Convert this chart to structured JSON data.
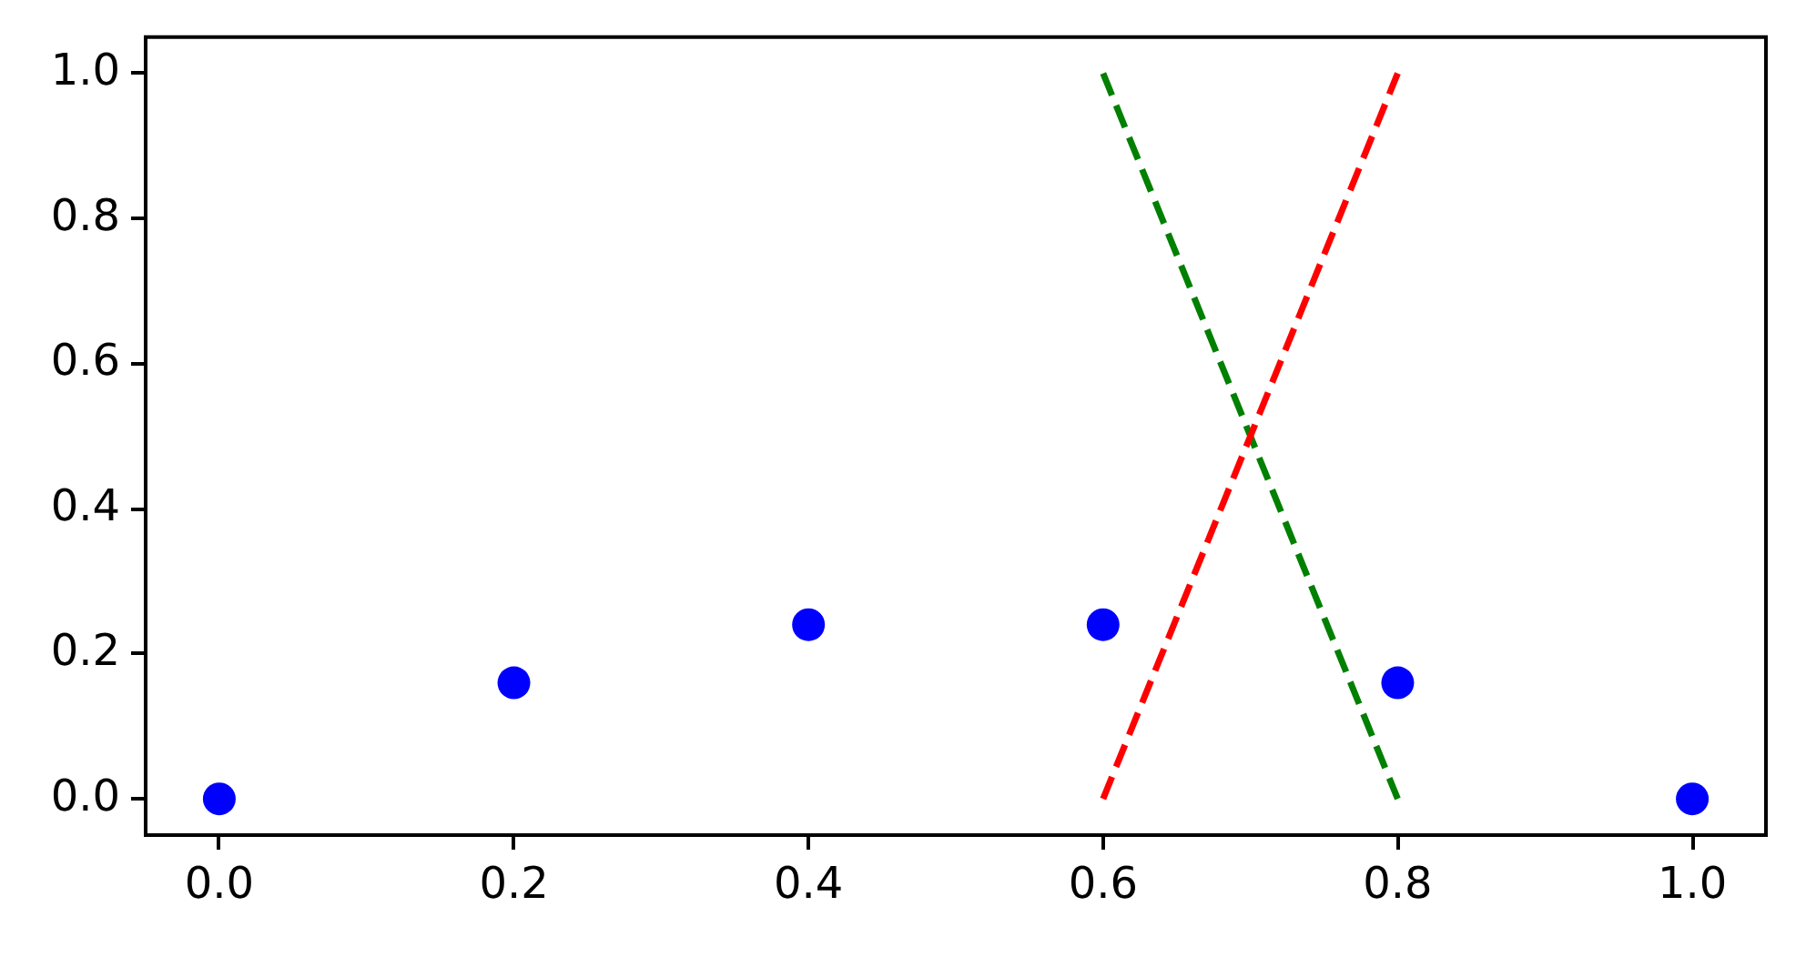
{
  "chart_data": {
    "type": "scatter",
    "xlim": [
      -0.05,
      1.05
    ],
    "ylim": [
      -0.05,
      1.05
    ],
    "xticks": [
      {
        "value": 0,
        "label": "0.0"
      },
      0.2,
      0.4,
      0.6,
      0.8,
      {
        "value": 1,
        "label": "1.0"
      }
    ],
    "yticks": [
      {
        "value": 0,
        "label": "0.0"
      },
      0.2,
      0.4,
      0.6,
      0.8,
      {
        "value": 1,
        "label": "1.0"
      }
    ],
    "series": [
      {
        "color": "#0000ff",
        "marker": "circle",
        "x": [
          0,
          0.2,
          0.4,
          0.6,
          0.8,
          1
        ],
        "values": [
          0,
          0.16,
          0.24,
          0.24,
          0.16,
          0
        ]
      },
      {
        "type": "line",
        "color": "#ff0000",
        "line_style": "dashed",
        "x": [
          0.6,
          0.8
        ],
        "values": [
          0,
          1
        ]
      },
      {
        "type": "line",
        "color": "#008000",
        "line_style": "dashed",
        "x": [
          0.6,
          0.8
        ],
        "values": [
          1,
          0
        ]
      }
    ]
  }
}
